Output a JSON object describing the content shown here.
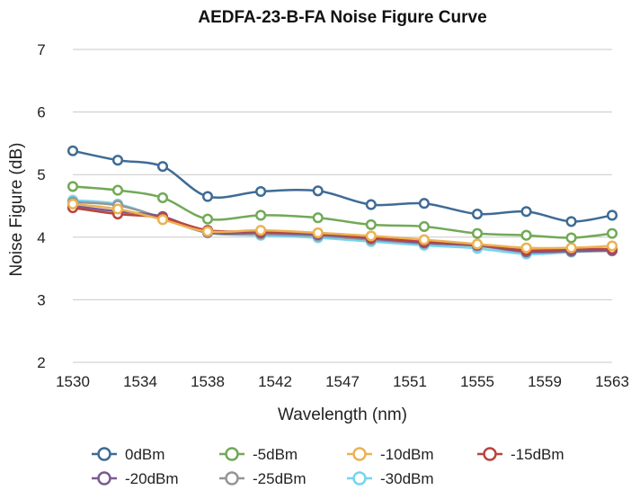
{
  "chart_data": {
    "type": "line",
    "title": "AEDFA-23-B-FA Noise Figure Curve",
    "xlabel": "Wavelength (nm)",
    "ylabel": "Noise Figure (dB)",
    "ylim": [
      2,
      7
    ],
    "yticks": [
      "2",
      "3",
      "4",
      "5",
      "6",
      "7"
    ],
    "categories": [
      "1530",
      "1534",
      "1538",
      "1542",
      "1547",
      "1551",
      "1555",
      "1559",
      "1563"
    ],
    "x": [
      1530,
      1532.75,
      1535.5,
      1538.25,
      1541.5,
      1545,
      1548.25,
      1551.5,
      1554.75,
      1557.75,
      1560.5,
      1563
    ],
    "grid": true,
    "legend_position": "bottom",
    "series": [
      {
        "name": "0dBm",
        "color": "#3f6b95",
        "values": [
          5.38,
          5.23,
          5.13,
          4.65,
          4.73,
          4.74,
          4.52,
          4.54,
          4.37,
          4.41,
          4.25,
          4.35
        ]
      },
      {
        "name": "-5dBm",
        "color": "#72a957",
        "values": [
          4.81,
          4.75,
          4.63,
          4.29,
          4.35,
          4.31,
          4.2,
          4.17,
          4.06,
          4.03,
          3.99,
          4.06
        ]
      },
      {
        "name": "-10dBm",
        "color": "#ecb252",
        "values": [
          4.53,
          4.45,
          4.28,
          4.09,
          4.11,
          4.07,
          4.02,
          3.96,
          3.89,
          3.83,
          3.83,
          3.86
        ]
      },
      {
        "name": "-15dBm",
        "color": "#b9443e",
        "values": [
          4.47,
          4.37,
          4.31,
          4.11,
          4.09,
          4.06,
          3.99,
          3.93,
          3.88,
          3.79,
          3.81,
          3.81
        ]
      },
      {
        "name": "-20dBm",
        "color": "#7a5a93",
        "values": [
          4.5,
          4.41,
          4.33,
          4.08,
          4.07,
          4.04,
          3.98,
          3.91,
          3.87,
          3.77,
          3.78,
          3.79
        ]
      },
      {
        "name": "-25dBm",
        "color": "#959595",
        "values": [
          4.56,
          4.51,
          4.31,
          4.07,
          4.05,
          4.02,
          3.96,
          3.9,
          3.86,
          3.76,
          3.77,
          3.78
        ]
      },
      {
        "name": "-30dBm",
        "color": "#76d4ef",
        "values": [
          4.59,
          4.53,
          4.3,
          4.07,
          4.03,
          3.99,
          3.93,
          3.87,
          3.82,
          3.73,
          3.76,
          3.79
        ]
      }
    ]
  }
}
